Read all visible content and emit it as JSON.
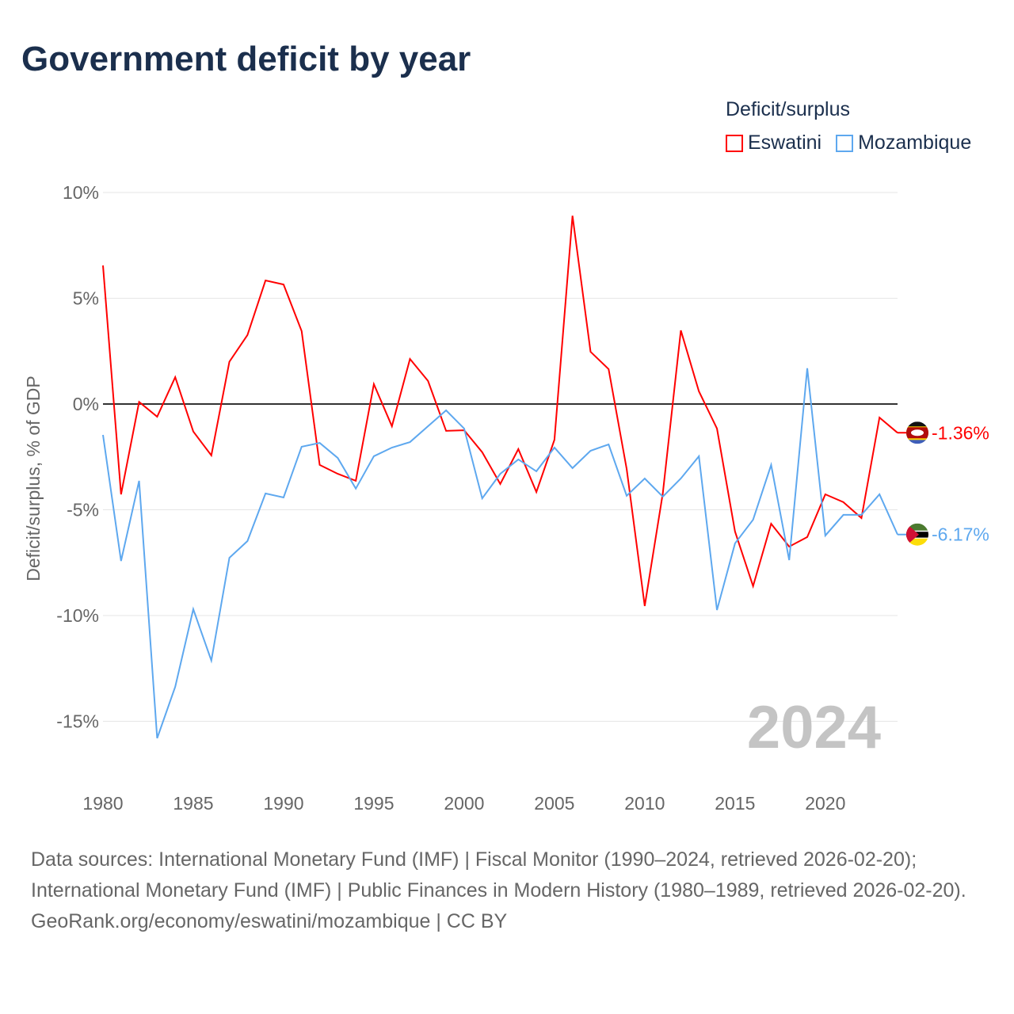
{
  "title": "Government deficit by year",
  "legend": {
    "title": "Deficit/surplus",
    "items": [
      {
        "label": "Eswatini",
        "color": "#ff0000"
      },
      {
        "label": "Mozambique",
        "color": "#5ea8ef"
      }
    ]
  },
  "footer": {
    "sources": "Data sources: International Monetary Fund (IMF) | Fiscal Monitor (1990–2024, retrieved 2026-02-20); International Monetary Fund (IMF) | Public Finances in Modern History (1980–1989, retrieved 2026-02-20).",
    "credit": "GeoRank.org/economy/eswatini/mozambique | CC BY"
  },
  "chart_data": {
    "type": "line",
    "title": "Government deficit by year",
    "ylabel": "Deficit/surplus, % of GDP",
    "xlabel": "",
    "year_watermark": "2024",
    "ylim": [
      -17,
      10
    ],
    "xlim": [
      1980,
      2024
    ],
    "yticks": [
      {
        "v": 10,
        "label": "10%"
      },
      {
        "v": 5,
        "label": "5%"
      },
      {
        "v": 0,
        "label": "0%"
      },
      {
        "v": -5,
        "label": "-5%"
      },
      {
        "v": -10,
        "label": "-10%"
      },
      {
        "v": -15,
        "label": "-15%"
      }
    ],
    "xticks": [
      1980,
      1985,
      1990,
      1995,
      2000,
      2005,
      2010,
      2015,
      2020
    ],
    "x": [
      1980,
      1981,
      1982,
      1983,
      1984,
      1985,
      1986,
      1987,
      1988,
      1989,
      1990,
      1991,
      1992,
      1993,
      1994,
      1995,
      1996,
      1997,
      1998,
      1999,
      2000,
      2001,
      2002,
      2003,
      2004,
      2005,
      2006,
      2007,
      2008,
      2009,
      2010,
      2011,
      2012,
      2013,
      2014,
      2015,
      2016,
      2017,
      2018,
      2019,
      2020,
      2021,
      2022,
      2023,
      2024
    ],
    "series": [
      {
        "name": "Eswatini",
        "color": "#ff0000",
        "end_label": "-1.36%",
        "values": [
          6.55,
          -4.27,
          0.1,
          -0.6,
          1.27,
          -1.3,
          -2.43,
          2.0,
          3.26,
          5.84,
          5.65,
          3.45,
          -2.88,
          -3.3,
          -3.63,
          0.94,
          -1.05,
          2.13,
          1.09,
          -1.27,
          -1.24,
          -2.28,
          -3.78,
          -2.13,
          -4.16,
          -1.69,
          8.9,
          2.47,
          1.65,
          -3.07,
          -9.55,
          -4.23,
          3.48,
          0.6,
          -1.16,
          -6.03,
          -8.61,
          -5.66,
          -6.74,
          -6.29,
          -4.27,
          -4.64,
          -5.39,
          -0.64,
          -1.36
        ]
      },
      {
        "name": "Mozambique",
        "color": "#5ea8ef",
        "end_label": "-6.17%",
        "values": [
          -1.46,
          -7.42,
          -3.63,
          -15.8,
          -13.37,
          -9.7,
          -12.13,
          -7.27,
          -6.48,
          -4.23,
          -4.42,
          -2.02,
          -1.84,
          -2.55,
          -4.0,
          -2.47,
          -2.06,
          -1.8,
          -1.05,
          -0.3,
          -1.16,
          -4.46,
          -3.3,
          -2.62,
          -3.18,
          -2.06,
          -3.03,
          -2.21,
          -1.91,
          -4.34,
          -3.52,
          -4.38,
          -3.52,
          -2.47,
          -9.74,
          -6.59,
          -5.47,
          -2.88,
          -7.38,
          1.69,
          -6.22,
          -5.24,
          -5.24,
          -4.27,
          -6.17
        ]
      }
    ]
  }
}
